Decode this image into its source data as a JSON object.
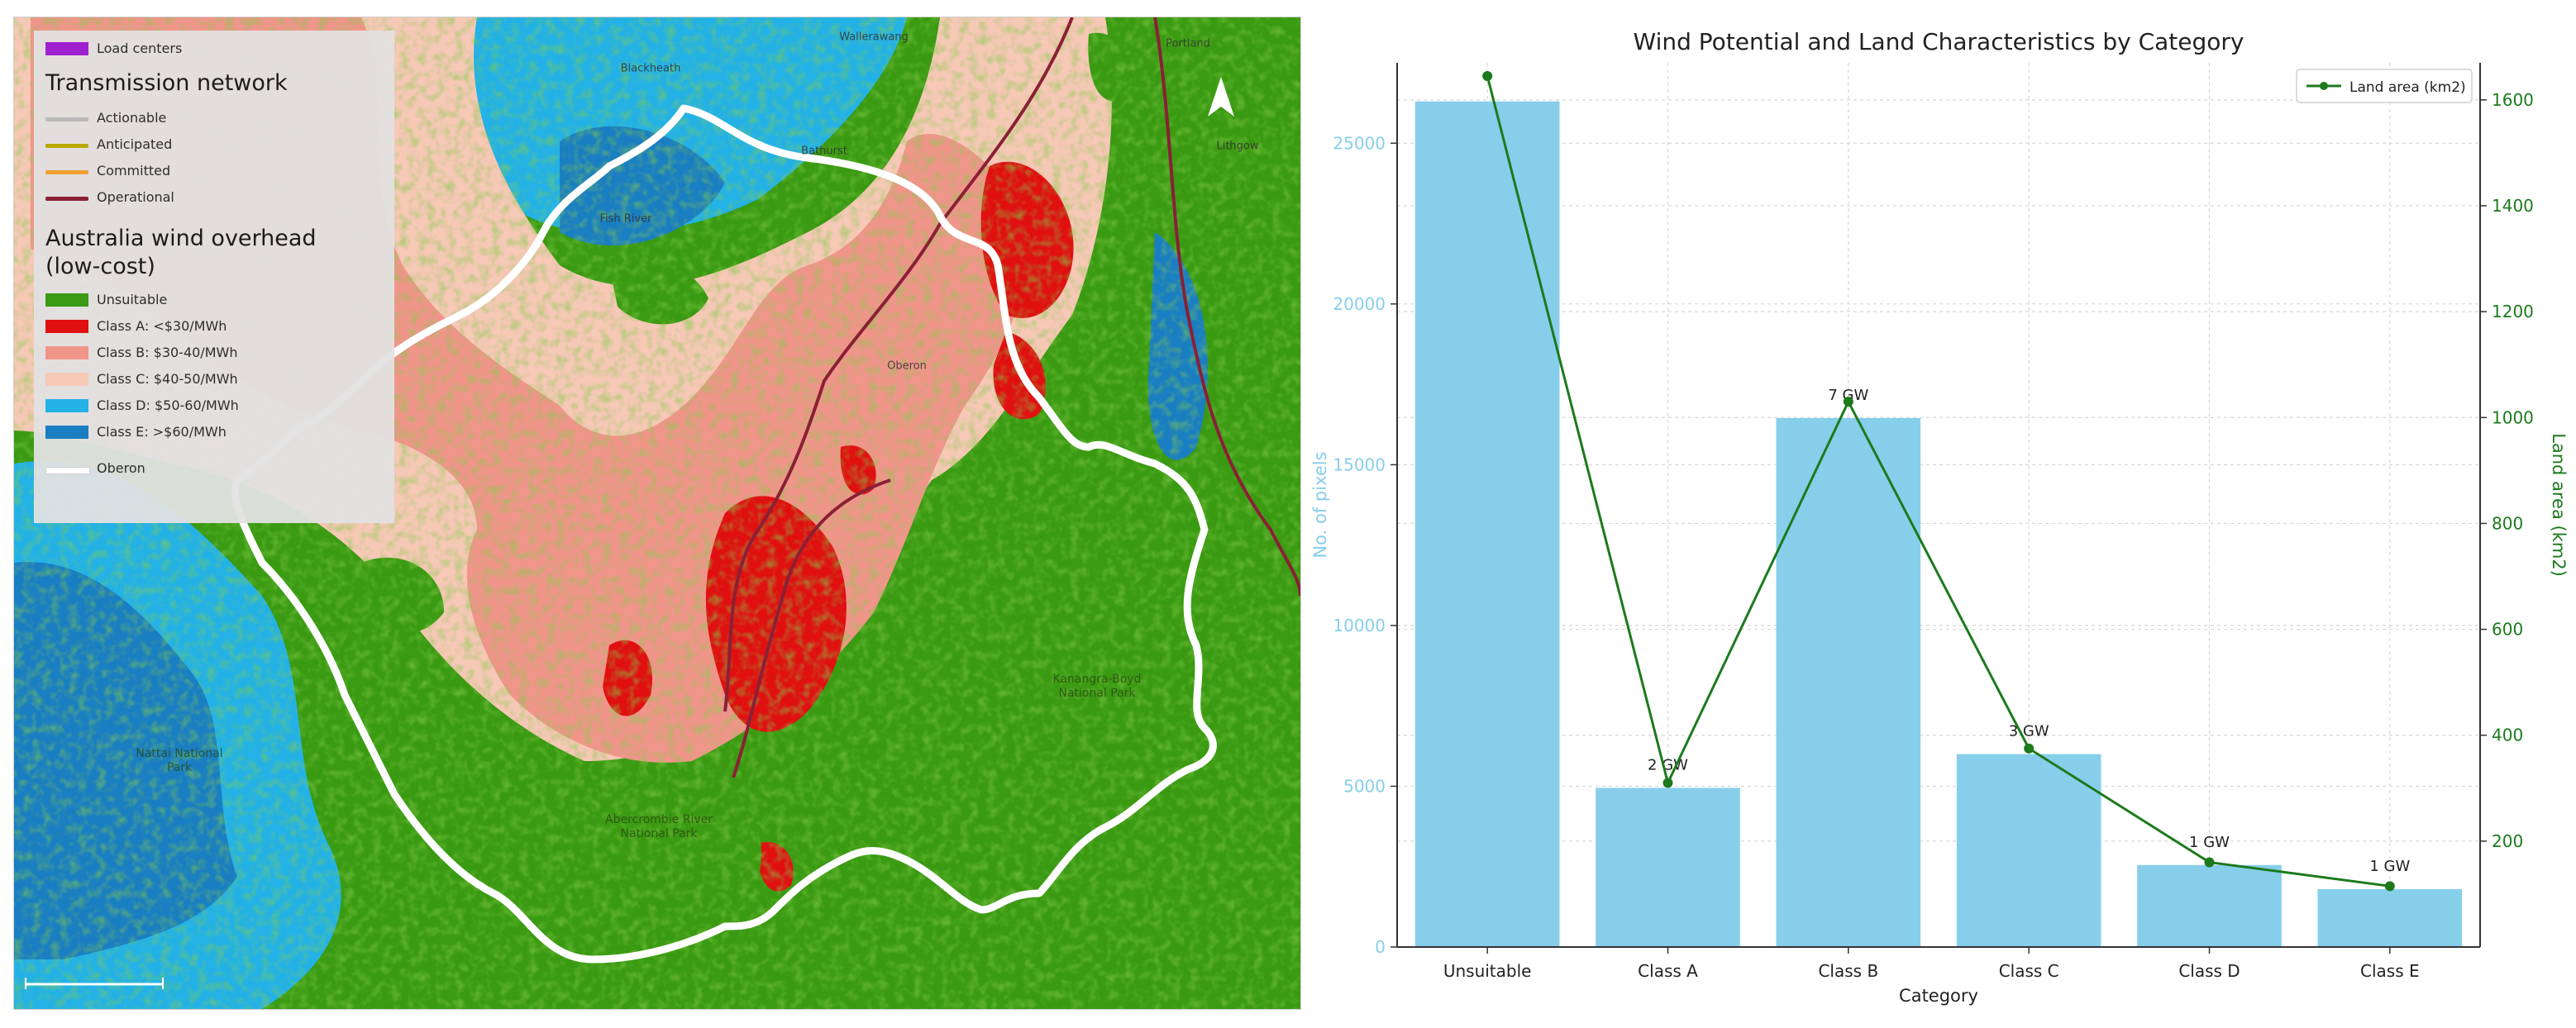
{
  "map": {
    "legend": {
      "load_centers": "Load centers",
      "transmission_title": "Transmission network",
      "transmission_items": [
        {
          "label": "Actionable",
          "color": "#b9b9b9"
        },
        {
          "label": "Anticipated",
          "color": "#b8a800"
        },
        {
          "label": "Committed",
          "color": "#f0a030"
        },
        {
          "label": "Operational",
          "color": "#8a2036"
        }
      ],
      "wind_title_line1": "Australia wind overhead",
      "wind_title_line2": "(low-cost)",
      "wind_items": [
        {
          "label": "Unsuitable",
          "color": "#3a9a12"
        },
        {
          "label": "Class A: <$30/MWh",
          "color": "#e01010"
        },
        {
          "label": "Class B: $30-40/MWh",
          "color": "#f0958a"
        },
        {
          "label": "Class C: $40-50/MWh",
          "color": "#f6c8b6"
        },
        {
          "label": "Class D: $50-60/MWh",
          "color": "#24b2e6"
        },
        {
          "label": "Class E: >$60/MWh",
          "color": "#1a7ec2"
        }
      ],
      "oberon": "Oberon",
      "load_centers_color": "#a020d0"
    },
    "towns": [
      "Bathurst",
      "Oberon",
      "Fish River",
      "Lithgow",
      "Blackheath",
      "Portland",
      "Wallerawang"
    ],
    "parks": [
      "Kanangra-Boyd National Park",
      "Abercrombie River National Park",
      "Nattai National Park"
    ]
  },
  "chart_data": {
    "type": "bar",
    "title": "Wind Potential and Land Characteristics by Category",
    "xlabel": "Category",
    "ylabel": "No. of pixels",
    "ylabel_right": "Land area (km2)",
    "categories": [
      "Unsuitable",
      "Class A",
      "Class B",
      "Class C",
      "Class D",
      "Class E"
    ],
    "values": [
      26300,
      4950,
      16450,
      6000,
      2550,
      1800
    ],
    "bar_labels": [
      "",
      "2 GW",
      "7 GW",
      "3 GW",
      "1 GW",
      "1 GW"
    ],
    "ylim": [
      0,
      27500
    ],
    "yticks": [
      0,
      5000,
      10000,
      15000,
      20000,
      25000
    ],
    "line_series": {
      "name": "Land area (km2)",
      "values": [
        1645,
        310,
        1030,
        375,
        160,
        115
      ],
      "ylim": [
        0,
        1670
      ],
      "yticks": [
        200,
        400,
        600,
        800,
        1000,
        1200,
        1400,
        1600
      ]
    },
    "grid": true,
    "legend_position": "top-right",
    "colors": {
      "bar": "#87ceeb",
      "line": "#1c7a1c",
      "left_axis": "#87ceeb",
      "right_axis": "#1c7a1c"
    }
  }
}
